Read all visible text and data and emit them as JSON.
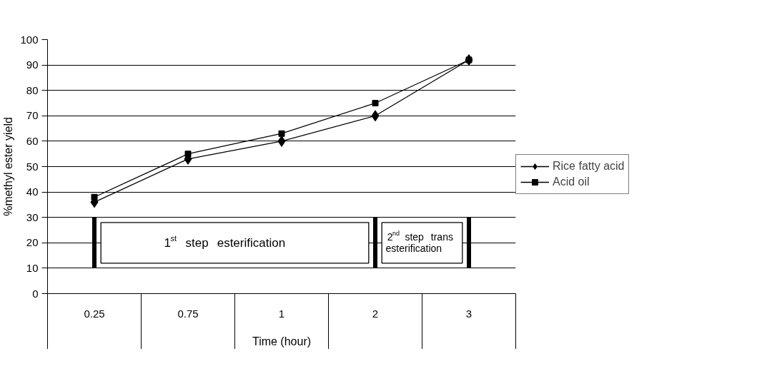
{
  "chart_data": {
    "type": "line",
    "xlabel": "Time (hour)",
    "ylabel": "%methyl ester yield",
    "categories": [
      "0.25",
      "0.75",
      "1",
      "2",
      "3"
    ],
    "series": [
      {
        "name": "Rice fatty acid",
        "color": "#000000",
        "marker": "diamond",
        "values": [
          36,
          53,
          60,
          70,
          92
        ]
      },
      {
        "name": "Acid oil",
        "color": "#000000",
        "marker": "square",
        "values": [
          38,
          55,
          63,
          75,
          92
        ]
      }
    ],
    "ylim": [
      0,
      100
    ],
    "yticks": [
      0,
      10,
      20,
      30,
      40,
      50,
      60,
      70,
      80,
      90,
      100
    ],
    "grid": "y",
    "legend": "right",
    "line_style": "solid",
    "ref_lines": [
      {
        "axis": "x",
        "value": "0.25"
      },
      {
        "axis": "x",
        "value": "2"
      },
      {
        "axis": "x",
        "value": "3"
      }
    ],
    "bands": [
      {
        "axis": "x",
        "from": "0.25",
        "to": "2",
        "label": "1$^{st}$ step esterification"
      },
      {
        "axis": "x",
        "from": "2",
        "to": "3",
        "label": "2$^{nd}$ step trans esterification"
      }
    ]
  }
}
